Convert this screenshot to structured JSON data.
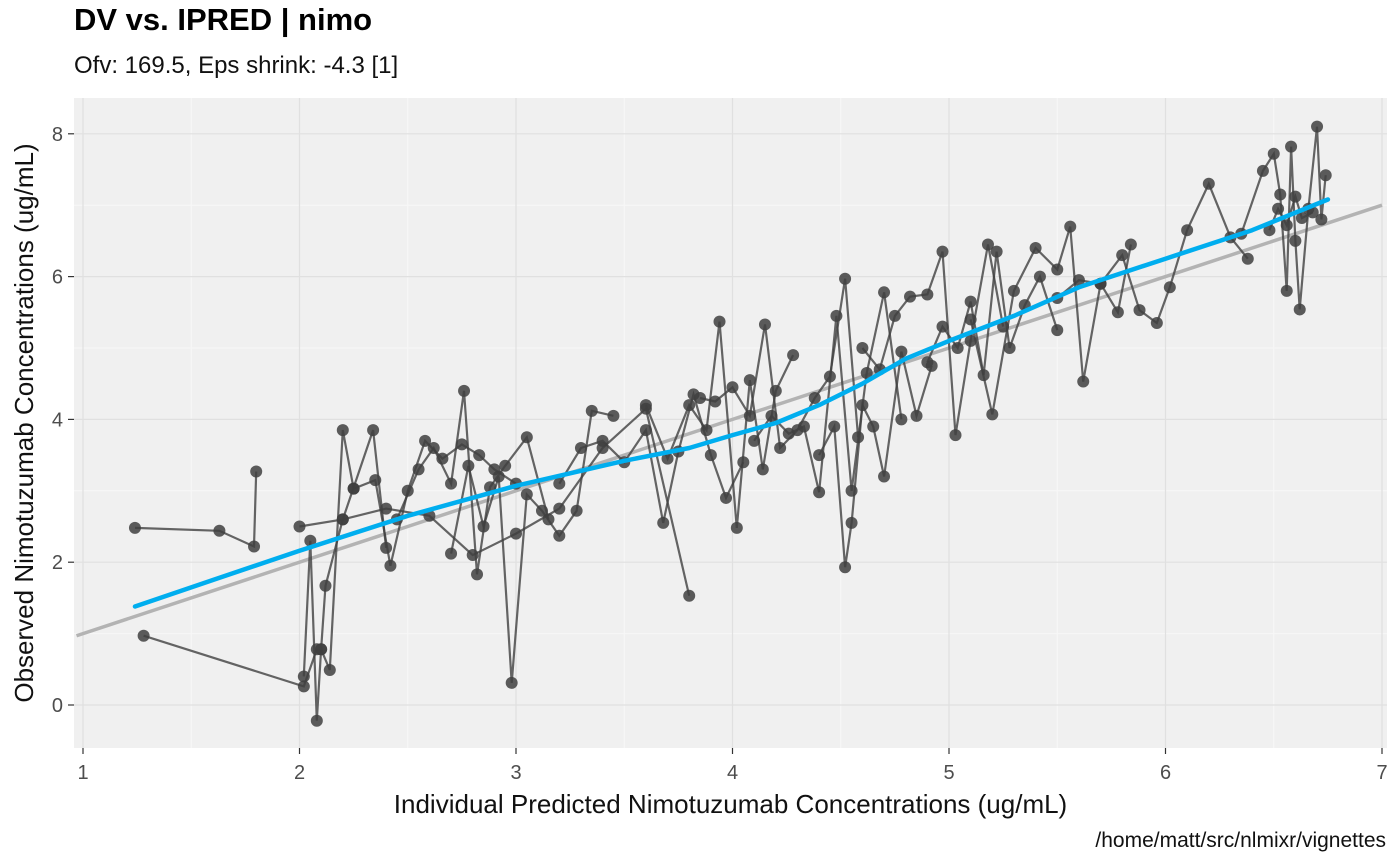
{
  "chart_data": {
    "type": "scatter",
    "title": "DV vs. IPRED | nimo",
    "subtitle": "Ofv: 169.5, Eps shrink: -4.3 [1]",
    "caption": "/home/matt/src/nlmixr/vignettes",
    "xlabel": "Individual Predicted Nimotuzumab Concentrations (ug/mL)",
    "ylabel": "Observed Nimotuzumab Concentrations (ug/mL)",
    "xlim": [
      0.97,
      7.0
    ],
    "ylim": [
      -0.6,
      8.5
    ],
    "x_ticks": [
      1,
      2,
      3,
      4,
      5,
      6,
      7
    ],
    "y_ticks": [
      0,
      2,
      4,
      6,
      8
    ],
    "grid": true,
    "colors": {
      "panel": "#f0f0f0",
      "grid": "#e0e0e0",
      "points": "#404040",
      "smooth": "#00aeef",
      "identity": "#b3b3b3"
    },
    "identity_line": {
      "x": [
        0.97,
        7.0
      ],
      "y": [
        0.97,
        7.0
      ]
    },
    "smooth": {
      "x": [
        1.24,
        1.6,
        2.0,
        2.5,
        3.0,
        3.5,
        3.8,
        4.0,
        4.2,
        4.4,
        4.6,
        4.8,
        5.0,
        5.3,
        5.6,
        6.0,
        6.4,
        6.75
      ],
      "y": [
        1.38,
        1.75,
        2.16,
        2.65,
        3.07,
        3.42,
        3.6,
        3.78,
        3.95,
        4.2,
        4.5,
        4.85,
        5.1,
        5.45,
        5.85,
        6.25,
        6.65,
        7.08
      ]
    },
    "series": [
      {
        "x": [
          1.24,
          1.63,
          1.79,
          1.8
        ],
        "y": [
          2.48,
          2.44,
          2.22,
          3.27
        ]
      },
      {
        "x": [
          1.28,
          2.02,
          2.08,
          2.1,
          2.12,
          2.2,
          2.34,
          2.4
        ],
        "y": [
          0.97,
          0.26,
          0.78,
          0.78,
          1.67,
          2.6,
          3.85,
          2.2
        ]
      },
      {
        "x": [
          2.0,
          2.2,
          2.4,
          2.6,
          2.8,
          3.0,
          3.2,
          3.4,
          3.6,
          3.8
        ],
        "y": [
          2.5,
          2.6,
          2.75,
          2.65,
          2.1,
          2.4,
          2.75,
          3.6,
          4.15,
          1.53
        ]
      },
      {
        "x": [
          2.02,
          2.05,
          2.08,
          2.1,
          2.14,
          2.2,
          2.25
        ],
        "y": [
          0.4,
          2.3,
          -0.22,
          0.78,
          0.49,
          3.85,
          3.03
        ]
      },
      {
        "x": [
          2.25,
          2.35,
          2.42,
          2.5,
          2.58,
          2.66,
          2.75,
          2.83,
          2.9,
          3.0
        ],
        "y": [
          3.03,
          3.15,
          1.95,
          3.0,
          3.7,
          3.45,
          3.65,
          3.5,
          3.3,
          3.1
        ]
      },
      {
        "x": [
          2.45,
          2.55,
          2.62,
          2.7,
          2.76,
          2.82,
          2.88,
          2.95,
          3.05,
          3.15
        ],
        "y": [
          2.6,
          3.3,
          3.6,
          3.1,
          4.4,
          1.83,
          3.05,
          3.35,
          3.75,
          2.6
        ]
      },
      {
        "x": [
          2.7,
          2.78,
          2.85,
          2.92,
          2.98,
          3.05,
          3.12,
          3.2,
          3.28,
          3.35,
          3.45
        ],
        "y": [
          2.12,
          3.35,
          2.5,
          3.2,
          0.31,
          2.95,
          2.72,
          2.37,
          2.72,
          4.12,
          4.05
        ]
      },
      {
        "x": [
          3.2,
          3.3,
          3.4,
          3.5,
          3.6,
          3.68,
          3.75,
          3.82,
          3.9,
          3.97,
          4.05
        ],
        "y": [
          3.1,
          3.6,
          3.7,
          3.4,
          3.85,
          2.55,
          3.55,
          4.35,
          3.5,
          2.9,
          3.4
        ]
      },
      {
        "x": [
          3.6,
          3.7,
          3.8,
          3.88,
          3.94,
          4.02,
          4.08,
          4.14,
          4.2,
          4.28
        ],
        "y": [
          4.2,
          3.45,
          4.2,
          3.85,
          5.37,
          2.48,
          4.55,
          3.3,
          4.4,
          4.9
        ]
      },
      {
        "x": [
          3.85,
          3.92,
          4.0,
          4.08,
          4.15,
          4.22,
          4.3,
          4.38,
          4.45,
          4.52,
          4.58
        ],
        "y": [
          4.3,
          4.25,
          4.45,
          4.05,
          5.33,
          3.6,
          3.85,
          4.3,
          4.6,
          5.97,
          3.75
        ]
      },
      {
        "x": [
          4.1,
          4.18,
          4.26,
          4.33,
          4.4,
          4.48,
          4.55,
          4.62,
          4.7,
          4.78
        ],
        "y": [
          3.7,
          4.05,
          3.8,
          3.9,
          2.98,
          5.45,
          3.0,
          4.65,
          5.78,
          4.0
        ]
      },
      {
        "x": [
          4.4,
          4.47,
          4.52,
          4.55,
          4.6,
          4.65,
          4.7,
          4.78,
          4.85,
          4.92
        ],
        "y": [
          3.5,
          3.9,
          1.93,
          2.55,
          4.2,
          3.9,
          3.2,
          4.95,
          4.05,
          4.75
        ]
      },
      {
        "x": [
          4.6,
          4.68,
          4.75,
          4.82,
          4.9,
          4.97,
          5.03,
          5.1,
          5.18,
          5.25
        ],
        "y": [
          5.0,
          4.7,
          5.45,
          5.72,
          5.75,
          6.35,
          3.78,
          5.1,
          6.45,
          5.3
        ]
      },
      {
        "x": [
          4.9,
          4.97,
          5.04,
          5.1,
          5.16,
          5.22,
          5.28,
          5.35,
          5.42,
          5.5
        ],
        "y": [
          4.8,
          5.3,
          5.0,
          5.65,
          4.62,
          6.35,
          5.0,
          5.6,
          6.0,
          5.25
        ]
      },
      {
        "x": [
          5.1,
          5.2,
          5.3,
          5.4,
          5.5,
          5.56,
          5.62,
          5.7,
          5.78,
          5.84
        ],
        "y": [
          5.4,
          4.07,
          5.8,
          6.4,
          6.1,
          6.7,
          4.53,
          5.9,
          5.5,
          6.45
        ]
      },
      {
        "x": [
          5.5,
          5.6,
          5.7,
          5.8,
          5.88,
          5.96,
          6.02,
          6.1,
          6.2,
          6.3,
          6.38
        ],
        "y": [
          5.7,
          5.95,
          5.9,
          6.3,
          5.53,
          5.35,
          5.85,
          6.65,
          7.3,
          6.55,
          6.25
        ]
      },
      {
        "x": [
          6.35,
          6.45,
          6.5,
          6.53,
          6.56,
          6.58,
          6.6,
          6.62,
          6.66,
          6.7,
          6.72,
          6.74
        ],
        "y": [
          6.6,
          7.48,
          7.72,
          7.15,
          5.8,
          7.82,
          6.5,
          5.54,
          6.95,
          8.1,
          6.8,
          7.42
        ]
      },
      {
        "x": [
          6.48,
          6.52,
          6.56,
          6.6,
          6.63,
          6.68
        ],
        "y": [
          6.65,
          6.95,
          6.72,
          7.12,
          6.82,
          6.9
        ]
      }
    ]
  }
}
